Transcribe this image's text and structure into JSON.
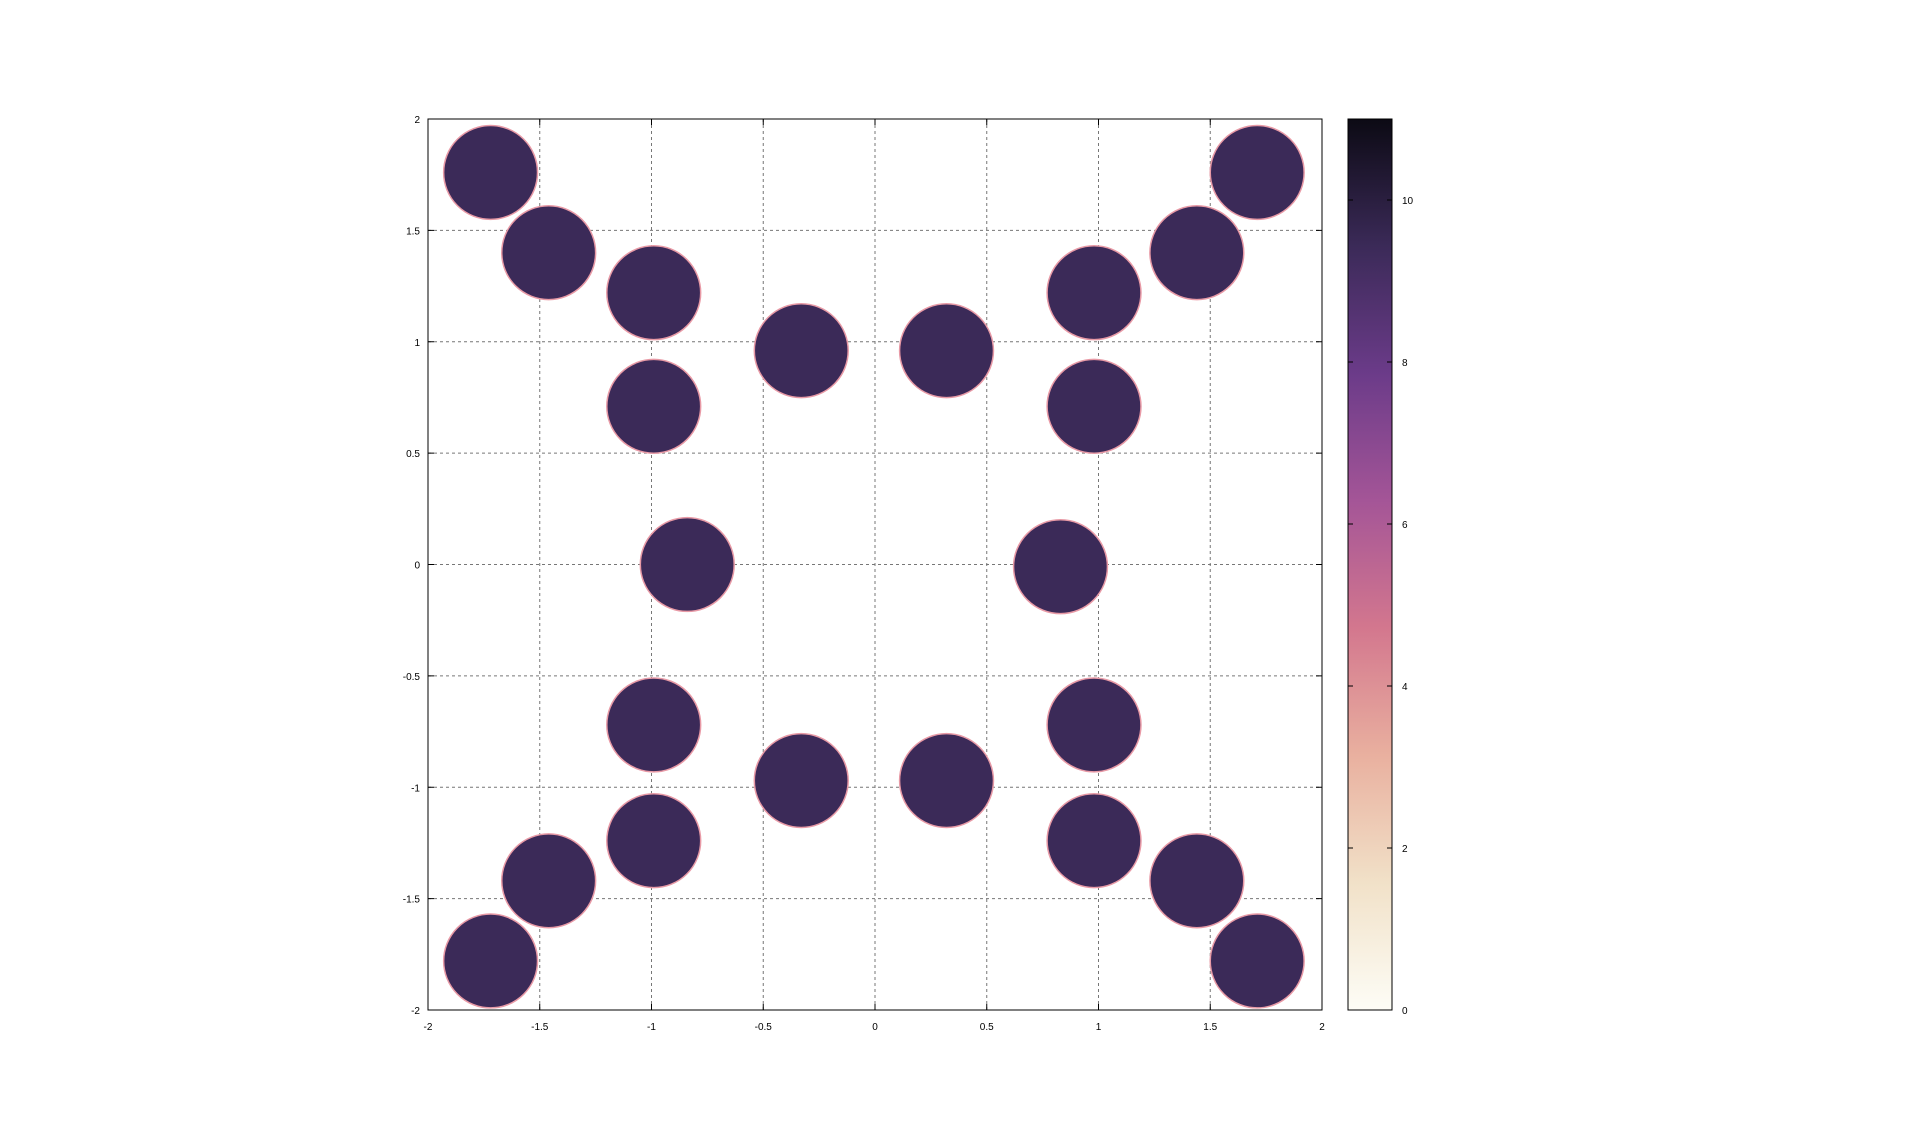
{
  "chart_data": {
    "type": "scatter",
    "title": "",
    "xlabel": "",
    "ylabel": "",
    "xlim": [
      -2,
      2
    ],
    "ylim": [
      -2,
      2
    ],
    "grid": true,
    "x_ticks": [
      -2,
      -1.5,
      -1,
      -0.5,
      0,
      0.5,
      1,
      1.5,
      2
    ],
    "y_ticks": [
      -2,
      -1.5,
      -1,
      -0.5,
      0,
      0.5,
      1,
      1.5,
      2
    ],
    "x_tick_labels": [
      "-2",
      "-1.5",
      "-1",
      "-0.5",
      "0",
      "0.5",
      "1",
      "1.5",
      "2"
    ],
    "y_tick_labels": [
      "-2",
      "-1.5",
      "-1",
      "-0.5",
      "0",
      "0.5",
      "1",
      "1.5",
      "2"
    ],
    "marker_radius": 0.21,
    "marker_value": 10,
    "fill_color": "#3b2a58",
    "edge_color": "#e89aa6",
    "points": [
      {
        "x": -1.72,
        "y": 1.76
      },
      {
        "x": -1.46,
        "y": 1.4
      },
      {
        "x": -0.99,
        "y": 1.22
      },
      {
        "x": -0.33,
        "y": 0.96
      },
      {
        "x": 0.32,
        "y": 0.96
      },
      {
        "x": 0.98,
        "y": 1.22
      },
      {
        "x": 1.44,
        "y": 1.4
      },
      {
        "x": 1.71,
        "y": 1.76
      },
      {
        "x": -0.99,
        "y": 0.71
      },
      {
        "x": 0.98,
        "y": 0.71
      },
      {
        "x": -0.84,
        "y": 0.0
      },
      {
        "x": 0.83,
        "y": -0.01
      },
      {
        "x": -0.99,
        "y": -0.72
      },
      {
        "x": 0.98,
        "y": -0.72
      },
      {
        "x": -0.33,
        "y": -0.97
      },
      {
        "x": 0.32,
        "y": -0.97
      },
      {
        "x": -0.99,
        "y": -1.24
      },
      {
        "x": 0.98,
        "y": -1.24
      },
      {
        "x": -1.46,
        "y": -1.42
      },
      {
        "x": 1.44,
        "y": -1.42
      },
      {
        "x": -1.72,
        "y": -1.78
      },
      {
        "x": 1.71,
        "y": -1.78
      }
    ],
    "colorbar": {
      "range": [
        0,
        11
      ],
      "ticks": [
        0,
        2,
        4,
        6,
        8,
        10
      ],
      "tick_labels": [
        "0",
        "2",
        "4",
        "6",
        "8",
        "10"
      ],
      "colors": [
        "#fdfdf6",
        "#f1e1c8",
        "#e9b09f",
        "#d3778e",
        "#a45597",
        "#6b3b89",
        "#3b2a58",
        "#0c0a14"
      ]
    }
  }
}
